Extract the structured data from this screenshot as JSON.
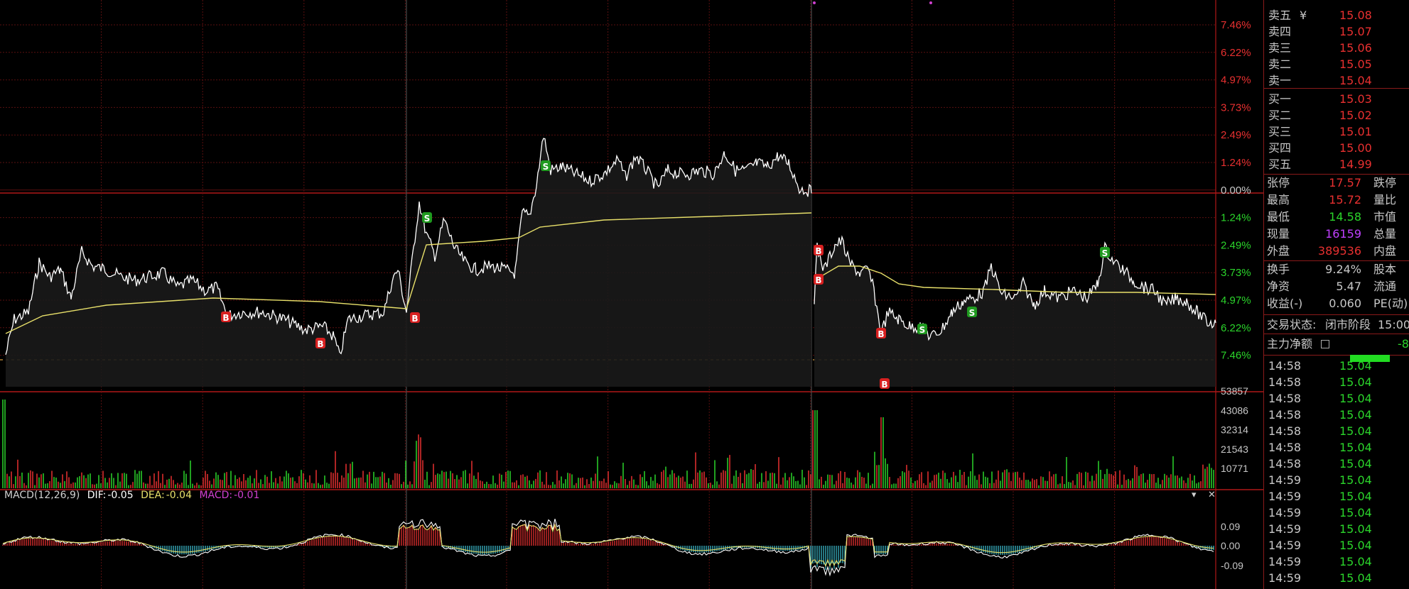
{
  "orderbook": {
    "asks": [
      {
        "label": "卖五",
        "price": "15.08",
        "symbol": "¥"
      },
      {
        "label": "卖四",
        "price": "15.07"
      },
      {
        "label": "卖三",
        "price": "15.06"
      },
      {
        "label": "卖二",
        "price": "15.05"
      },
      {
        "label": "卖一",
        "price": "15.04"
      }
    ],
    "bids": [
      {
        "label": "买一",
        "price": "15.03"
      },
      {
        "label": "买二",
        "price": "15.02"
      },
      {
        "label": "买三",
        "price": "15.01"
      },
      {
        "label": "买四",
        "price": "15.00"
      },
      {
        "label": "买五",
        "price": "14.99"
      }
    ]
  },
  "stats": [
    {
      "label": "张停",
      "value": "17.57",
      "color": "#e83030",
      "label2": "跌停"
    },
    {
      "label": "最高",
      "value": "15.72",
      "color": "#e83030",
      "label2": "量比"
    },
    {
      "label": "最低",
      "value": "14.58",
      "color": "#2bd52b",
      "label2": "市值"
    },
    {
      "label": "现量",
      "value": "16159",
      "color": "#c040ff",
      "label2": "总量"
    },
    {
      "label": "外盘",
      "value": "389536",
      "color": "#e83030",
      "label2": "内盘"
    },
    {
      "label": "换手",
      "value": "9.24%",
      "color": "#c8c8c8",
      "label2": "股本"
    },
    {
      "label": "净资",
      "value": "5.47",
      "color": "#c8c8c8",
      "label2": "流通"
    },
    {
      "label": "收益(-)",
      "value": "0.060",
      "color": "#c8c8c8",
      "label2": "PE(动)"
    }
  ],
  "trading_status": {
    "label": "交易状态:",
    "value": "闭市阶段",
    "time": "15:00"
  },
  "main_flow": {
    "label": "主力净额",
    "value": "-8"
  },
  "trades": [
    {
      "time": "14:58",
      "price": "15.04"
    },
    {
      "time": "14:58",
      "price": "15.04"
    },
    {
      "time": "14:58",
      "price": "15.04"
    },
    {
      "time": "14:58",
      "price": "15.04"
    },
    {
      "time": "14:58",
      "price": "15.04"
    },
    {
      "time": "14:58",
      "price": "15.04"
    },
    {
      "time": "14:58",
      "price": "15.04"
    },
    {
      "time": "14:59",
      "price": "15.04"
    },
    {
      "time": "14:59",
      "price": "15.04"
    },
    {
      "time": "14:59",
      "price": "15.04"
    },
    {
      "time": "14:59",
      "price": "15.04"
    },
    {
      "time": "14:59",
      "price": "15.04"
    },
    {
      "time": "14:59",
      "price": "15.04"
    },
    {
      "time": "14:59",
      "price": "15.04"
    }
  ],
  "price_axis_labels": [
    "7.46%",
    "6.22%",
    "4.97%",
    "3.73%",
    "2.49%",
    "1.24%",
    "0.00%",
    "1.24%",
    "2.49%",
    "3.73%",
    "4.97%",
    "6.22%",
    "7.46%"
  ],
  "volume_axis_labels": [
    "53857",
    "43086",
    "32314",
    "21543",
    "10771"
  ],
  "macd": {
    "name": "MACD(12,26,9)",
    "dif_label": "DIF:",
    "dif_value": "-0.05",
    "dea_label": "DEA:",
    "dea_value": "-0.04",
    "macd_label": "MACD:",
    "macd_value": "-0.01",
    "axis_labels": [
      "0.09",
      "0.00",
      "-0.09"
    ]
  },
  "colors": {
    "up": "#e83030",
    "down": "#2bd52b",
    "price_line": "#ffffff",
    "avg_line": "#e8e06a",
    "grid": "#5a0f0f",
    "macd_neg": "#3ab7c8",
    "macd_label": "#d040d0"
  }
}
